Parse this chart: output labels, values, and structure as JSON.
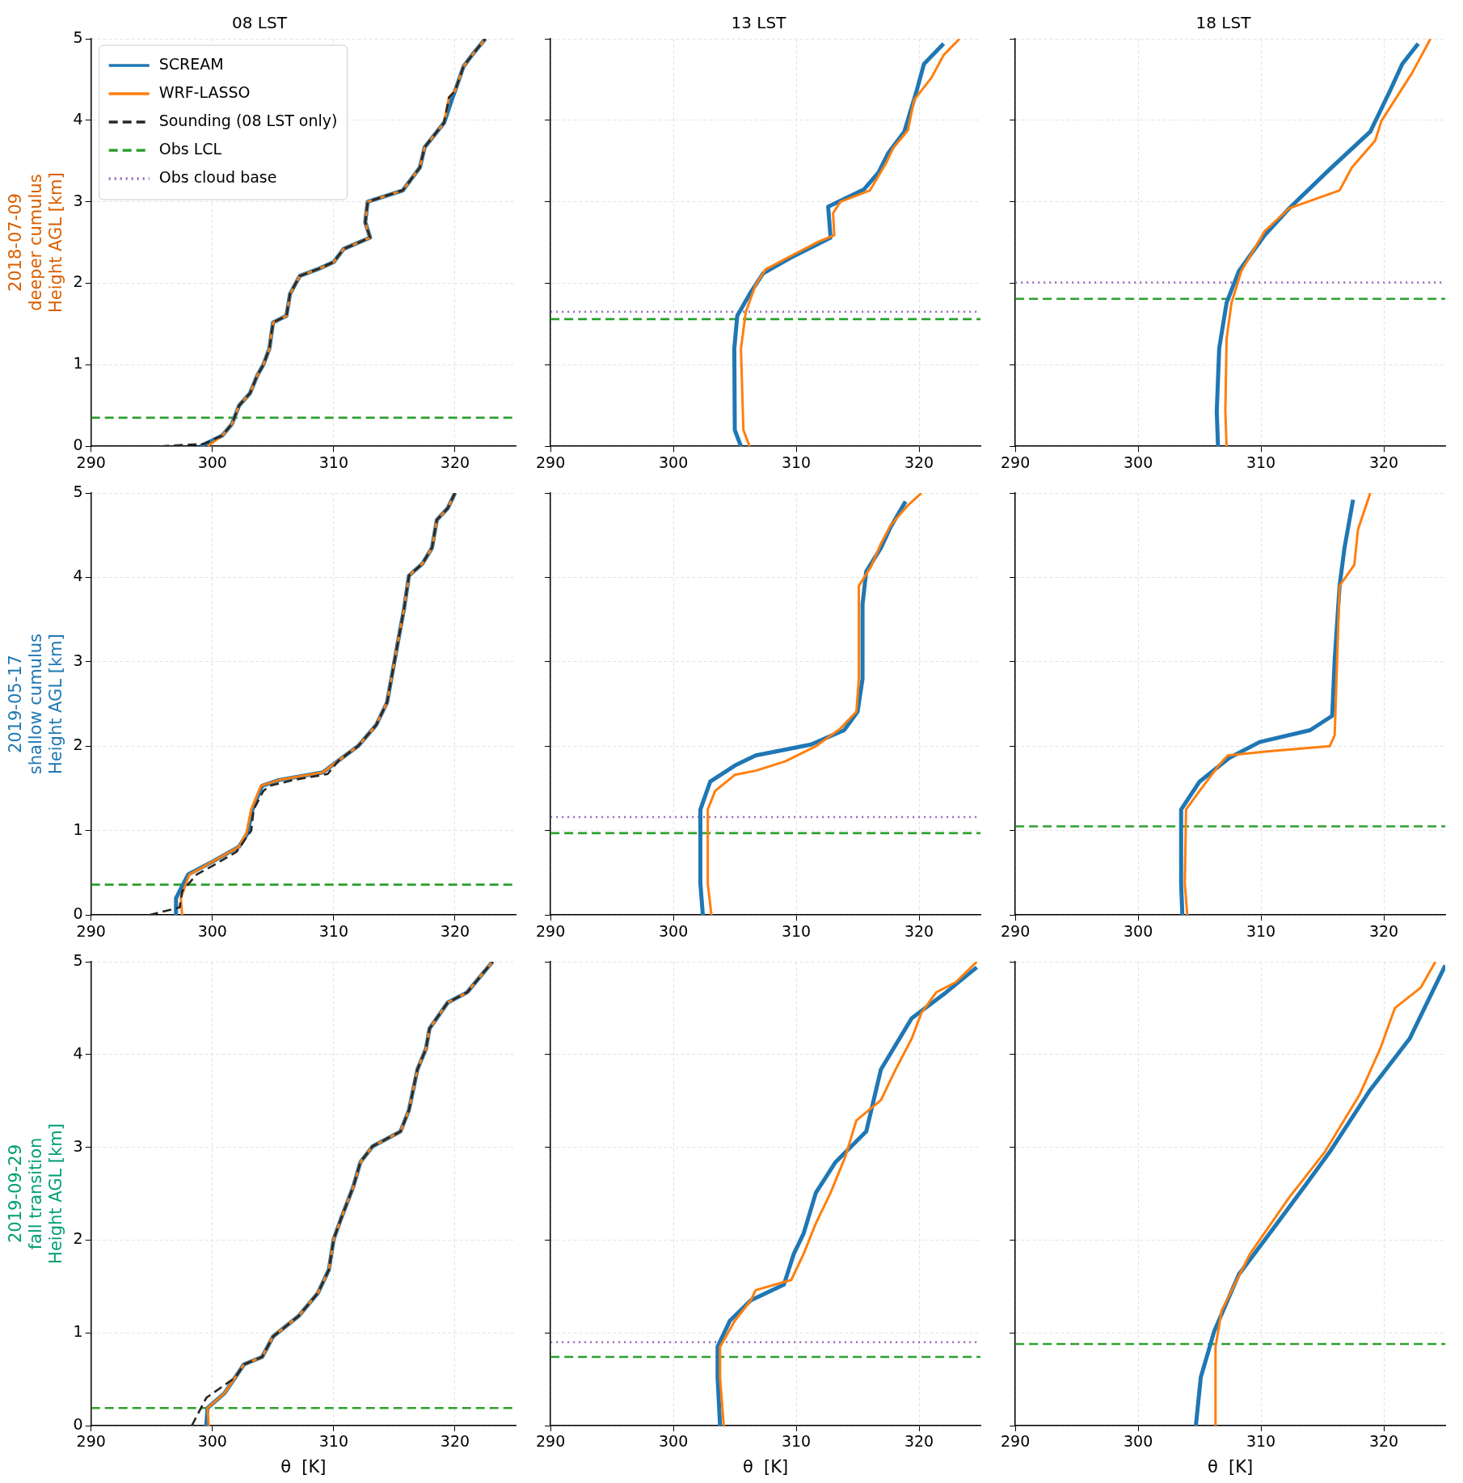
{
  "chart_data": [
    {
      "type": "line",
      "title": "08 LST",
      "ylabel": "2018-07-09\ndeeper cumulus\nHeight AGL [km]",
      "xlim": [
        290,
        325
      ],
      "ylim": [
        0,
        5
      ],
      "xticks": [
        290,
        300,
        310,
        320
      ],
      "yticks": [
        0,
        1,
        2,
        3,
        4,
        5
      ],
      "grid": true,
      "legend": "top left",
      "series": [
        {
          "name": "SCREAM",
          "color": "#1f77b4",
          "line_style": "solid",
          "x": [
            299.0,
            300.8,
            301.6,
            302.2,
            303.1,
            303.7,
            304.2,
            304.7,
            305.0,
            306.1,
            306.4,
            307.2,
            308.8,
            310.0,
            310.8,
            313.0,
            312.6,
            312.8,
            315.7,
            317.1,
            317.5,
            319.1,
            319.8,
            320.0,
            320.7,
            321.4,
            322.5
          ],
          "values": [
            0,
            0.13,
            0.27,
            0.5,
            0.65,
            0.87,
            1.0,
            1.2,
            1.52,
            1.6,
            1.87,
            2.09,
            2.18,
            2.26,
            2.42,
            2.56,
            2.75,
            3.0,
            3.14,
            3.42,
            3.67,
            3.97,
            4.28,
            4.36,
            4.66,
            4.8,
            5.0
          ]
        },
        {
          "name": "WRF-LASSO",
          "color": "#ff7f0e",
          "line_style": "solid",
          "x": [
            299.6,
            300.8,
            301.6,
            302.2,
            303.1,
            303.7,
            304.2,
            304.7,
            305.0,
            306.1,
            306.4,
            307.2,
            308.8,
            310.0,
            310.8,
            313.0,
            312.6,
            312.8,
            315.7,
            317.1,
            317.5,
            319.1,
            319.5,
            320.0,
            320.7,
            321.4,
            322.5
          ],
          "values": [
            0,
            0.13,
            0.27,
            0.5,
            0.65,
            0.87,
            1.0,
            1.2,
            1.52,
            1.6,
            1.87,
            2.09,
            2.18,
            2.26,
            2.42,
            2.56,
            2.75,
            3.0,
            3.14,
            3.42,
            3.67,
            3.97,
            4.28,
            4.36,
            4.66,
            4.8,
            5.0
          ]
        },
        {
          "name": "Sounding (08 LST only)",
          "color": "#262626",
          "line_style": "dashed",
          "x": [
            295.7,
            299.3,
            300.8,
            301.6,
            302.2,
            303.1,
            303.7,
            304.2,
            304.7,
            305.0,
            306.1,
            306.4,
            307.2,
            308.8,
            310.0,
            310.8,
            313.0,
            312.6,
            312.8,
            315.7,
            317.1,
            317.5,
            319.1,
            319.5,
            320.0,
            320.7,
            321.4,
            322.5
          ],
          "values": [
            0,
            0.03,
            0.13,
            0.27,
            0.5,
            0.65,
            0.87,
            1.0,
            1.2,
            1.52,
            1.6,
            1.87,
            2.09,
            2.18,
            2.26,
            2.42,
            2.56,
            2.75,
            3.0,
            3.14,
            3.42,
            3.67,
            3.97,
            4.28,
            4.36,
            4.66,
            4.8,
            5.0
          ]
        },
        {
          "name": "Obs cloud base",
          "color": "#9467bd",
          "line_style": "dotted"
        }
      ],
      "ref_lines": [
        {
          "axis": "y",
          "value": 0.35,
          "label": "Obs LCL",
          "color": "#2ca02c",
          "line_style": "dashed"
        }
      ]
    },
    {
      "type": "line",
      "title": "13 LST",
      "xlim": [
        290,
        325
      ],
      "ylim": [
        0,
        5
      ],
      "xticks": [
        290,
        300,
        310,
        320
      ],
      "yticks": [
        0,
        1,
        2,
        3,
        4,
        5
      ],
      "grid": true,
      "tick_labels": "x",
      "series": [
        {
          "color": "#1f77b4",
          "line_style": "solid",
          "x": [
            305.5,
            305.0,
            304.96,
            305.2,
            306.3,
            307.3,
            309.5,
            312.8,
            312.6,
            315.5,
            316.7,
            317.5,
            318.8,
            319.8,
            320.4,
            322.0
          ],
          "values": [
            0,
            0.2,
            1.2,
            1.6,
            1.89,
            2.12,
            2.31,
            2.56,
            2.94,
            3.15,
            3.36,
            3.6,
            3.86,
            4.36,
            4.69,
            4.94
          ]
        },
        {
          "color": "#ff7f0e",
          "line_style": "solid",
          "x": [
            306.2,
            305.7,
            305.5,
            305.9,
            306.7,
            307.5,
            310.0,
            311.8,
            313.1,
            313.0,
            313.6,
            316.0,
            317.3,
            317.9,
            319.1,
            319.6,
            321.0,
            322.0,
            323.3
          ],
          "values": [
            0,
            0.2,
            1.2,
            1.65,
            1.98,
            2.17,
            2.37,
            2.51,
            2.59,
            2.86,
            3.0,
            3.14,
            3.47,
            3.66,
            3.88,
            4.25,
            4.52,
            4.8,
            5.0
          ]
        }
      ],
      "ref_lines": [
        {
          "axis": "y",
          "value": 1.56,
          "color": "#2ca02c",
          "line_style": "dashed"
        },
        {
          "axis": "y",
          "value": 1.65,
          "color": "#9467bd",
          "line_style": "dotted"
        }
      ]
    },
    {
      "type": "line",
      "title": "18 LST",
      "xlim": [
        290,
        325
      ],
      "ylim": [
        0,
        5
      ],
      "xticks": [
        290,
        300,
        310,
        320
      ],
      "yticks": [
        0,
        1,
        2,
        3,
        4,
        5
      ],
      "grid": true,
      "tick_labels": "x",
      "series": [
        {
          "color": "#1f77b4",
          "line_style": "solid",
          "x": [
            306.5,
            306.4,
            306.6,
            307.2,
            308.2,
            310.3,
            312.3,
            315.6,
            318.9,
            320.5,
            321.5,
            322.8
          ],
          "values": [
            0,
            0.43,
            1.2,
            1.76,
            2.15,
            2.59,
            2.92,
            3.4,
            3.86,
            4.36,
            4.69,
            4.94
          ]
        },
        {
          "color": "#ff7f0e",
          "line_style": "solid",
          "x": [
            307.2,
            307.1,
            307.2,
            307.6,
            308.4,
            310.3,
            312.3,
            316.4,
            317.4,
            319.3,
            319.8,
            320.9,
            322.3,
            323.8
          ],
          "values": [
            0,
            0.43,
            1.32,
            1.76,
            2.15,
            2.64,
            2.92,
            3.14,
            3.42,
            3.75,
            3.99,
            4.25,
            4.58,
            5.0
          ]
        }
      ],
      "ref_lines": [
        {
          "axis": "y",
          "value": 1.81,
          "color": "#2ca02c",
          "line_style": "dashed"
        },
        {
          "axis": "y",
          "value": 2.01,
          "color": "#9467bd",
          "line_style": "dotted"
        }
      ]
    },
    {
      "type": "line",
      "ylabel": "2019-05-17\nshallow cumulus\nHeight AGL [km]",
      "xlim": [
        290,
        325
      ],
      "ylim": [
        0,
        5
      ],
      "xticks": [
        290,
        300,
        310,
        320
      ],
      "yticks": [
        0,
        1,
        2,
        3,
        4,
        5
      ],
      "grid": true,
      "series": [
        {
          "color": "#1f77b4",
          "line_style": "solid",
          "x": [
            297.0,
            297.0,
            298.0,
            300.1,
            302.2,
            302.9,
            303.3,
            304.1,
            305.5,
            309.1,
            310.4,
            312.0,
            313.5,
            314.4,
            315.3,
            315.8,
            316.2,
            317.3,
            318.1,
            318.5,
            319.4,
            320.0
          ],
          "values": [
            0,
            0.2,
            0.48,
            0.64,
            0.81,
            0.97,
            1.25,
            1.53,
            1.6,
            1.69,
            1.83,
            2.0,
            2.25,
            2.52,
            3.24,
            3.63,
            4.02,
            4.16,
            4.35,
            4.68,
            4.82,
            5.0
          ]
        },
        {
          "color": "#ff7f0e",
          "line_style": "solid",
          "x": [
            297.5,
            297.4,
            298.1,
            300.1,
            302.2,
            302.8,
            303.2,
            304.0,
            305.5,
            309.1,
            310.4,
            312.0,
            313.5,
            314.4,
            315.3,
            315.8,
            316.2,
            317.3,
            318.1,
            318.5,
            319.4,
            320.0
          ],
          "values": [
            0,
            0.2,
            0.48,
            0.64,
            0.81,
            0.97,
            1.25,
            1.53,
            1.6,
            1.69,
            1.83,
            2.0,
            2.25,
            2.52,
            3.24,
            3.63,
            4.02,
            4.16,
            4.35,
            4.68,
            4.82,
            5.0
          ]
        },
        {
          "color": "#262626",
          "line_style": "dashed",
          "x": [
            294.8,
            297.3,
            297.5,
            298.7,
            300.1,
            302.0,
            303.2,
            303.4,
            304.2,
            304.7,
            306.7,
            309.5,
            310.4,
            312.0,
            313.5,
            314.4,
            315.3,
            315.8,
            316.2,
            317.3,
            318.1,
            318.5,
            319.4,
            320.0
          ],
          "values": [
            0,
            0.09,
            0.28,
            0.48,
            0.59,
            0.75,
            1.0,
            1.25,
            1.47,
            1.53,
            1.6,
            1.67,
            1.83,
            2.0,
            2.25,
            2.52,
            3.24,
            3.63,
            4.02,
            4.16,
            4.35,
            4.68,
            4.82,
            5.0
          ]
        }
      ],
      "ref_lines": [
        {
          "axis": "y",
          "value": 0.36,
          "color": "#2ca02c",
          "line_style": "dashed"
        }
      ]
    },
    {
      "type": "line",
      "xlim": [
        290,
        325
      ],
      "ylim": [
        0,
        5
      ],
      "xticks": [
        290,
        300,
        310,
        320
      ],
      "yticks": [
        0,
        1,
        2,
        3,
        4,
        5
      ],
      "grid": true,
      "tick_labels": "x",
      "series": [
        {
          "color": "#1f77b4",
          "line_style": "solid",
          "x": [
            302.4,
            302.2,
            302.2,
            303.0,
            305.0,
            306.7,
            311.2,
            313.9,
            315.0,
            315.4,
            315.4,
            315.7,
            316.9,
            317.7,
            318.9
          ],
          "values": [
            0,
            0.37,
            1.25,
            1.58,
            1.77,
            1.89,
            2.02,
            2.19,
            2.41,
            2.8,
            3.68,
            4.07,
            4.35,
            4.6,
            4.9
          ]
        },
        {
          "color": "#ff7f0e",
          "line_style": "solid",
          "x": [
            303.1,
            302.8,
            302.8,
            303.4,
            305.0,
            306.7,
            309.1,
            311.6,
            313.6,
            314.9,
            315.1,
            315.1,
            316.1,
            316.9,
            317.7,
            319.0,
            320.2
          ],
          "values": [
            0,
            0.37,
            1.25,
            1.47,
            1.66,
            1.71,
            1.82,
            2.0,
            2.21,
            2.41,
            2.8,
            3.9,
            4.13,
            4.4,
            4.62,
            4.84,
            5.0
          ]
        }
      ],
      "ref_lines": [
        {
          "axis": "y",
          "value": 0.97,
          "color": "#2ca02c",
          "line_style": "dashed"
        },
        {
          "axis": "y",
          "value": 1.16,
          "color": "#9467bd",
          "line_style": "dotted"
        }
      ]
    },
    {
      "type": "line",
      "xlim": [
        290,
        325
      ],
      "ylim": [
        0,
        5
      ],
      "xticks": [
        290,
        300,
        310,
        320
      ],
      "yticks": [
        0,
        1,
        2,
        3,
        4,
        5
      ],
      "grid": true,
      "tick_labels": "x",
      "series": [
        {
          "color": "#1f77b4",
          "line_style": "solid",
          "x": [
            303.6,
            303.5,
            303.5,
            305.0,
            307.4,
            309.9,
            314.0,
            315.8,
            316.0,
            316.4,
            316.8,
            317.5
          ],
          "values": [
            0,
            0.37,
            1.25,
            1.58,
            1.86,
            2.05,
            2.19,
            2.36,
            3.02,
            3.9,
            4.35,
            4.92
          ]
        },
        {
          "color": "#ff7f0e",
          "line_style": "solid",
          "x": [
            304.0,
            303.8,
            303.9,
            305.0,
            306.6,
            307.3,
            310.7,
            315.6,
            316.0,
            316.2,
            316.4,
            317.6,
            317.9,
            318.9
          ],
          "values": [
            0,
            0.37,
            1.25,
            1.47,
            1.78,
            1.89,
            1.94,
            2.0,
            2.13,
            3.02,
            3.9,
            4.15,
            4.57,
            5.0
          ]
        }
      ],
      "ref_lines": [
        {
          "axis": "y",
          "value": 1.05,
          "color": "#2ca02c",
          "line_style": "dashed"
        }
      ]
    },
    {
      "type": "line",
      "xlabel": "θ  [K]",
      "ylabel": "2019-09-29\nfall transition\nHeight AGL [km]",
      "xlim": [
        290,
        325
      ],
      "ylim": [
        0,
        5
      ],
      "xticks": [
        290,
        300,
        310,
        320
      ],
      "yticks": [
        0,
        1,
        2,
        3,
        4,
        5
      ],
      "grid": true,
      "series": [
        {
          "color": "#1f77b4",
          "line_style": "solid",
          "x": [
            299.5,
            299.6,
            301.0,
            302.6,
            304.1,
            305.0,
            307.1,
            308.7,
            309.6,
            310.0,
            310.6,
            311.6,
            312.2,
            313.2,
            315.5,
            316.2,
            316.9,
            317.6,
            317.9,
            319.4,
            321.0,
            322.2,
            323.1
          ],
          "values": [
            0,
            0.19,
            0.35,
            0.66,
            0.74,
            0.96,
            1.18,
            1.43,
            1.68,
            2.01,
            2.23,
            2.57,
            2.84,
            3.01,
            3.17,
            3.4,
            3.84,
            4.06,
            4.28,
            4.56,
            4.67,
            4.86,
            5.0
          ]
        },
        {
          "color": "#ff7f0e",
          "line_style": "solid",
          "x": [
            299.7,
            299.6,
            301.0,
            302.6,
            304.1,
            305.0,
            307.1,
            308.7,
            309.6,
            310.0,
            310.6,
            311.6,
            312.2,
            313.2,
            315.5,
            316.2,
            316.9,
            317.6,
            317.9,
            319.4,
            321.0,
            322.2,
            323.1
          ],
          "values": [
            0,
            0.19,
            0.35,
            0.66,
            0.74,
            0.96,
            1.18,
            1.43,
            1.68,
            2.01,
            2.23,
            2.57,
            2.84,
            3.01,
            3.17,
            3.4,
            3.84,
            4.06,
            4.28,
            4.56,
            4.67,
            4.86,
            5.0
          ]
        },
        {
          "color": "#262626",
          "line_style": "dashed",
          "x": [
            298.3,
            299.5,
            301.9,
            302.6,
            304.1,
            305.0,
            307.1,
            308.7,
            309.6,
            310.0,
            310.6,
            311.6,
            312.2,
            313.2,
            315.5,
            316.2,
            316.9,
            317.6,
            317.9,
            319.4,
            321.0,
            322.2,
            323.1
          ],
          "values": [
            0,
            0.3,
            0.52,
            0.66,
            0.74,
            0.96,
            1.18,
            1.43,
            1.68,
            2.01,
            2.23,
            2.57,
            2.84,
            3.01,
            3.17,
            3.4,
            3.84,
            4.06,
            4.28,
            4.56,
            4.67,
            4.86,
            5.0
          ]
        }
      ],
      "ref_lines": [
        {
          "axis": "y",
          "value": 0.19,
          "color": "#2ca02c",
          "line_style": "dashed"
        }
      ]
    },
    {
      "type": "line",
      "xlabel": "θ  [K]",
      "xlim": [
        290,
        325
      ],
      "ylim": [
        0,
        5
      ],
      "xticks": [
        290,
        300,
        310,
        320
      ],
      "yticks": [
        0,
        1,
        2,
        3,
        4,
        5
      ],
      "grid": true,
      "tick_labels": "x",
      "series": [
        {
          "color": "#1f77b4",
          "line_style": "solid",
          "x": [
            303.8,
            303.6,
            303.6,
            304.6,
            306.3,
            309.0,
            309.8,
            310.6,
            311.6,
            313.2,
            315.7,
            316.9,
            319.4,
            322.2,
            324.7
          ],
          "values": [
            0,
            0.52,
            0.85,
            1.13,
            1.35,
            1.52,
            1.85,
            2.07,
            2.51,
            2.84,
            3.17,
            3.84,
            4.39,
            4.67,
            4.94
          ]
        },
        {
          "color": "#ff7f0e",
          "line_style": "solid",
          "x": [
            304.1,
            303.8,
            303.8,
            305.0,
            306.3,
            306.7,
            309.6,
            310.6,
            311.6,
            312.8,
            314.0,
            314.9,
            316.9,
            318.1,
            319.4,
            320.2,
            321.4,
            323.0,
            324.7
          ],
          "values": [
            0,
            0.52,
            0.85,
            1.13,
            1.35,
            1.46,
            1.57,
            1.85,
            2.18,
            2.51,
            2.9,
            3.29,
            3.51,
            3.84,
            4.17,
            4.45,
            4.67,
            4.78,
            5.0
          ]
        }
      ],
      "ref_lines": [
        {
          "axis": "y",
          "value": 0.74,
          "color": "#2ca02c",
          "line_style": "dashed"
        },
        {
          "axis": "y",
          "value": 0.9,
          "color": "#9467bd",
          "line_style": "dotted"
        }
      ]
    },
    {
      "type": "line",
      "xlabel": "θ  [K]",
      "xlim": [
        290,
        325
      ],
      "ylim": [
        0,
        5
      ],
      "xticks": [
        290,
        300,
        310,
        320
      ],
      "yticks": [
        0,
        1,
        2,
        3,
        4,
        5
      ],
      "grid": true,
      "tick_labels": "x",
      "series": [
        {
          "color": "#1f77b4",
          "line_style": "solid",
          "x": [
            304.7,
            305.1,
            306.2,
            308.2,
            310.7,
            313.5,
            315.6,
            318.9,
            322.1,
            325.0
          ],
          "values": [
            0,
            0.52,
            1.02,
            1.63,
            2.07,
            2.57,
            2.95,
            3.62,
            4.17,
            4.96
          ]
        },
        {
          "color": "#ff7f0e",
          "line_style": "solid",
          "x": [
            306.3,
            306.3,
            306.8,
            309.1,
            312.3,
            315.2,
            318.0,
            319.7,
            320.9,
            323.0,
            324.2
          ],
          "values": [
            0,
            0.85,
            1.24,
            1.85,
            2.46,
            2.95,
            3.56,
            4.06,
            4.5,
            4.72,
            5.0
          ]
        }
      ],
      "ref_lines": [
        {
          "axis": "y",
          "value": 0.88,
          "color": "#2ca02c",
          "line_style": "dashed"
        }
      ]
    }
  ]
}
